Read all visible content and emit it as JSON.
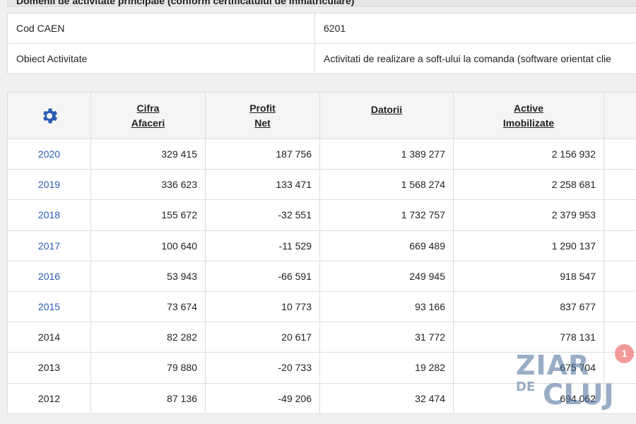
{
  "section": {
    "title": "Domenii de activitate principale (conform certificatului de inmatriculare)"
  },
  "info": {
    "rows": [
      {
        "label": "Cod CAEN",
        "value": "6201"
      },
      {
        "label": "Obiect Activitate",
        "value": "Activitati de realizare a soft-ului la comanda (software orientat clie"
      }
    ]
  },
  "financial": {
    "settings_icon": "gear-icon",
    "headers": [
      {
        "line1": "Cifra",
        "line2": "Afaceri"
      },
      {
        "line1": "Profit",
        "line2": "Net"
      },
      {
        "line1": "Datorii",
        "line2": ""
      },
      {
        "line1": "Active",
        "line2": "Imobilizate"
      }
    ],
    "rows": [
      {
        "year": "2020",
        "cifra": "329 415",
        "profit": "187 756",
        "datorii": "1 389 277",
        "active": "2 156 932",
        "link": true
      },
      {
        "year": "2019",
        "cifra": "336 623",
        "profit": "133 471",
        "datorii": "1 568 274",
        "active": "2 258 681",
        "link": true
      },
      {
        "year": "2018",
        "cifra": "155 672",
        "profit": "-32 551",
        "datorii": "1 732 757",
        "active": "2 379 953",
        "link": true
      },
      {
        "year": "2017",
        "cifra": "100 640",
        "profit": "-11 529",
        "datorii": "669 489",
        "active": "1 290 137",
        "link": true
      },
      {
        "year": "2016",
        "cifra": "53 943",
        "profit": "-66 591",
        "datorii": "249 945",
        "active": "918 547",
        "link": true
      },
      {
        "year": "2015",
        "cifra": "73 674",
        "profit": "10 773",
        "datorii": "93 166",
        "active": "837 677",
        "link": true
      },
      {
        "year": "2014",
        "cifra": "82 282",
        "profit": "20 617",
        "datorii": "31 772",
        "active": "778 131",
        "link": false
      },
      {
        "year": "2013",
        "cifra": "79 880",
        "profit": "-20 733",
        "datorii": "19 282",
        "active": "675 704",
        "link": false
      },
      {
        "year": "2012",
        "cifra": "87 136",
        "profit": "-49 206",
        "datorii": "32 474",
        "active": "694 062",
        "link": false
      }
    ]
  },
  "watermark": {
    "line1": "ZIAR",
    "de": "DE",
    "line2": "CLUJ"
  },
  "notification": {
    "count": "1"
  },
  "colors": {
    "link": "#2a5db0",
    "gear": "#2a5db0",
    "badge": "#f29a9a"
  }
}
